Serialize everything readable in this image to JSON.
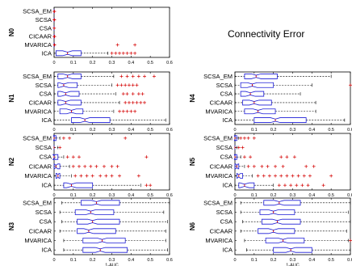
{
  "title": "Connectivity Error",
  "x_axis": {
    "label": "1-AUC",
    "range": [
      0,
      0.6
    ],
    "ticks": [
      0,
      0.1,
      0.2,
      0.3,
      0.4,
      0.5,
      0.6
    ],
    "tick_labels": [
      "0",
      "0.1",
      "0.2",
      "0.3",
      "0.4",
      "0.5",
      "0.6"
    ]
  },
  "colors": {
    "box": "#1c1cd6",
    "median": "#d40000",
    "outlier": "#d40000",
    "whisker": "#000000"
  },
  "chart_data": [
    {
      "type": "boxplot",
      "panel": "N0",
      "xlim": [
        0,
        0.6
      ],
      "methods": [
        "SCSA_EM",
        "SCSA",
        "CSA",
        "CICAAR",
        "MVARICA",
        "ICA"
      ],
      "stats": [
        {
          "min": 0,
          "q1": 0,
          "median": 0,
          "q3": 0,
          "max": 0,
          "outliers": [
            0.001,
            0.002
          ]
        },
        {
          "min": 0,
          "q1": 0,
          "median": 0,
          "q3": 0,
          "max": 0,
          "outliers": [
            0.001,
            0.002
          ]
        },
        {
          "min": 0,
          "q1": 0,
          "median": 0,
          "q3": 0,
          "max": 0,
          "outliers": [
            0.001
          ]
        },
        {
          "min": 0,
          "q1": 0,
          "median": 0,
          "q3": 0,
          "max": 0,
          "outliers": [
            0.001,
            0.003
          ]
        },
        {
          "min": 0,
          "q1": 0,
          "median": 0,
          "q3": 0,
          "max": 0,
          "outliers": [
            0.003,
            0.33,
            0.42
          ]
        },
        {
          "min": 0,
          "q1": 0.01,
          "median": 0.07,
          "q3": 0.14,
          "max": 0.28,
          "outliers": [
            0.3,
            0.32,
            0.34,
            0.36,
            0.38,
            0.4,
            0.42
          ]
        }
      ]
    },
    {
      "type": "boxplot",
      "panel": "N1",
      "xlim": [
        0,
        0.6
      ],
      "methods": [
        "SCSA_EM",
        "SCSA",
        "CSA",
        "CICAAR",
        "MVARICA",
        "ICA"
      ],
      "stats": [
        {
          "min": 0,
          "q1": 0.02,
          "median": 0.07,
          "q3": 0.14,
          "max": 0.31,
          "outliers": [
            0.35,
            0.38,
            0.41,
            0.44,
            0.47,
            0.52
          ]
        },
        {
          "min": 0,
          "q1": 0.02,
          "median": 0.05,
          "q3": 0.12,
          "max": 0.3,
          "outliers": [
            0.33,
            0.35,
            0.37,
            0.39,
            0.41,
            0.43
          ]
        },
        {
          "min": 0,
          "q1": 0.02,
          "median": 0.06,
          "q3": 0.13,
          "max": 0.32,
          "outliers": [
            0.36,
            0.38,
            0.41,
            0.44,
            0.46
          ]
        },
        {
          "min": 0,
          "q1": 0.02,
          "median": 0.06,
          "q3": 0.14,
          "max": 0.34,
          "outliers": [
            0.37,
            0.39,
            0.41,
            0.43,
            0.45,
            0.47
          ]
        },
        {
          "min": 0,
          "q1": 0.03,
          "median": 0.09,
          "q3": 0.15,
          "max": 0.31,
          "outliers": [
            0.34,
            0.36,
            0.38,
            0.4,
            0.42
          ]
        },
        {
          "min": 0,
          "q1": 0.09,
          "median": 0.16,
          "q3": 0.29,
          "max": 0.58,
          "outliers": []
        }
      ]
    },
    {
      "type": "boxplot",
      "panel": "N2",
      "xlim": [
        0,
        0.6
      ],
      "methods": [
        "SCSA_EM",
        "SCSA",
        "CSA",
        "CICAAR",
        "MVARICA",
        "ICA"
      ],
      "stats": [
        {
          "min": 0,
          "q1": 0,
          "median": 0,
          "q3": 0.01,
          "max": 0.03,
          "outliers": [
            0.05,
            0.08,
            0.37
          ]
        },
        {
          "min": 0,
          "q1": 0,
          "median": 0,
          "q3": 0,
          "max": 0.02,
          "outliers": [
            0.03
          ]
        },
        {
          "min": 0,
          "q1": 0,
          "median": 0,
          "q3": 0.02,
          "max": 0.05,
          "outliers": [
            0.07,
            0.1,
            0.13,
            0.48
          ]
        },
        {
          "min": 0,
          "q1": 0,
          "median": 0.01,
          "q3": 0.03,
          "max": 0.08,
          "outliers": [
            0.1,
            0.13,
            0.16,
            0.19,
            0.22,
            0.26,
            0.3,
            0.33
          ]
        },
        {
          "min": 0,
          "q1": 0.01,
          "median": 0.02,
          "q3": 0.03,
          "max": 0.09,
          "outliers": [
            0.11,
            0.14,
            0.17,
            0.2,
            0.24,
            0.27,
            0.3,
            0.34,
            0.44
          ]
        },
        {
          "min": 0,
          "q1": 0.05,
          "median": 0.09,
          "q3": 0.2,
          "max": 0.45,
          "outliers": [
            0.48,
            0.5
          ]
        }
      ]
    },
    {
      "type": "boxplot",
      "panel": "N3",
      "xlim": [
        0,
        0.6
      ],
      "methods": [
        "SCSA_EM",
        "SCSA",
        "CSA",
        "CICAAR",
        "MVARICA",
        "ICA"
      ],
      "stats": [
        {
          "min": 0.04,
          "q1": 0.14,
          "median": 0.22,
          "q3": 0.34,
          "max": 0.6,
          "outliers": []
        },
        {
          "min": 0.03,
          "q1": 0.11,
          "median": 0.19,
          "q3": 0.31,
          "max": 0.57,
          "outliers": []
        },
        {
          "min": 0.04,
          "q1": 0.12,
          "median": 0.2,
          "q3": 0.34,
          "max": 0.59,
          "outliers": []
        },
        {
          "min": 0.03,
          "q1": 0.12,
          "median": 0.18,
          "q3": 0.32,
          "max": 0.58,
          "outliers": []
        },
        {
          "min": 0.05,
          "q1": 0.15,
          "median": 0.25,
          "q3": 0.37,
          "max": 0.58,
          "outliers": []
        },
        {
          "min": 0.05,
          "q1": 0.15,
          "median": 0.24,
          "q3": 0.38,
          "max": 0.59,
          "outliers": []
        }
      ]
    },
    {
      "type": "boxplot",
      "panel": "N4",
      "xlim": [
        0,
        0.6
      ],
      "methods": [
        "SCSA_EM",
        "SCSA",
        "CSA",
        "CICAAR",
        "MVARICA",
        "ICA"
      ],
      "stats": [
        {
          "min": 0,
          "q1": 0.05,
          "median": 0.11,
          "q3": 0.22,
          "max": 0.5,
          "outliers": []
        },
        {
          "min": 0,
          "q1": 0.03,
          "median": 0.09,
          "q3": 0.2,
          "max": 0.4,
          "outliers": [
            0.6
          ]
        },
        {
          "min": 0,
          "q1": 0.03,
          "median": 0.08,
          "q3": 0.15,
          "max": 0.34,
          "outliers": []
        },
        {
          "min": 0,
          "q1": 0.04,
          "median": 0.1,
          "q3": 0.19,
          "max": 0.42,
          "outliers": []
        },
        {
          "min": 0,
          "q1": 0.05,
          "median": 0.12,
          "q3": 0.21,
          "max": 0.42,
          "outliers": []
        },
        {
          "min": 0,
          "q1": 0.1,
          "median": 0.21,
          "q3": 0.37,
          "max": 0.57,
          "outliers": []
        }
      ]
    },
    {
      "type": "boxplot",
      "panel": "N5",
      "xlim": [
        0,
        0.6
      ],
      "methods": [
        "SCSA_EM",
        "SCSA",
        "CSA",
        "CICAAR",
        "MVARICA",
        "ICA"
      ],
      "stats": [
        {
          "min": 0,
          "q1": 0,
          "median": 0,
          "q3": 0.01,
          "max": 0.02,
          "outliers": [
            0.03,
            0.05,
            0.07,
            0.1
          ]
        },
        {
          "min": 0,
          "q1": 0,
          "median": 0,
          "q3": 0,
          "max": 0.01,
          "outliers": [
            0.02,
            0.04
          ]
        },
        {
          "min": 0,
          "q1": 0,
          "median": 0,
          "q3": 0.01,
          "max": 0.03,
          "outliers": [
            0.05,
            0.08,
            0.24,
            0.27,
            0.31
          ]
        },
        {
          "min": 0,
          "q1": 0,
          "median": 0.01,
          "q3": 0.02,
          "max": 0.05,
          "outliers": [
            0.07,
            0.1,
            0.14,
            0.17,
            0.21,
            0.25,
            0.37,
            0.41
          ]
        },
        {
          "min": 0,
          "q1": 0.01,
          "median": 0.02,
          "q3": 0.04,
          "max": 0.09,
          "outliers": [
            0.12,
            0.15,
            0.18,
            0.21,
            0.24,
            0.27,
            0.3,
            0.33,
            0.36,
            0.39,
            0.5
          ]
        },
        {
          "min": 0,
          "q1": 0.02,
          "median": 0.05,
          "q3": 0.1,
          "max": 0.2,
          "outliers": [
            0.23,
            0.26,
            0.29,
            0.32,
            0.35,
            0.38,
            0.46
          ]
        }
      ]
    },
    {
      "type": "boxplot",
      "panel": "N6",
      "xlim": [
        0,
        0.6
      ],
      "methods": [
        "SCSA_EM",
        "SCSA",
        "CSA",
        "CICAAR",
        "MVARICA",
        "ICA"
      ],
      "stats": [
        {
          "min": 0.03,
          "q1": 0.15,
          "median": 0.23,
          "q3": 0.34,
          "max": 0.6,
          "outliers": []
        },
        {
          "min": 0.03,
          "q1": 0.13,
          "median": 0.2,
          "q3": 0.31,
          "max": 0.59,
          "outliers": []
        },
        {
          "min": 0.04,
          "q1": 0.14,
          "median": 0.22,
          "q3": 0.34,
          "max": 0.6,
          "outliers": []
        },
        {
          "min": 0.03,
          "q1": 0.12,
          "median": 0.2,
          "q3": 0.31,
          "max": 0.58,
          "outliers": []
        },
        {
          "min": 0.05,
          "q1": 0.16,
          "median": 0.25,
          "q3": 0.36,
          "max": 0.59,
          "outliers": [
            0.6
          ]
        },
        {
          "min": 0.06,
          "q1": 0.2,
          "median": 0.29,
          "q3": 0.4,
          "max": 0.6,
          "outliers": []
        }
      ]
    }
  ]
}
